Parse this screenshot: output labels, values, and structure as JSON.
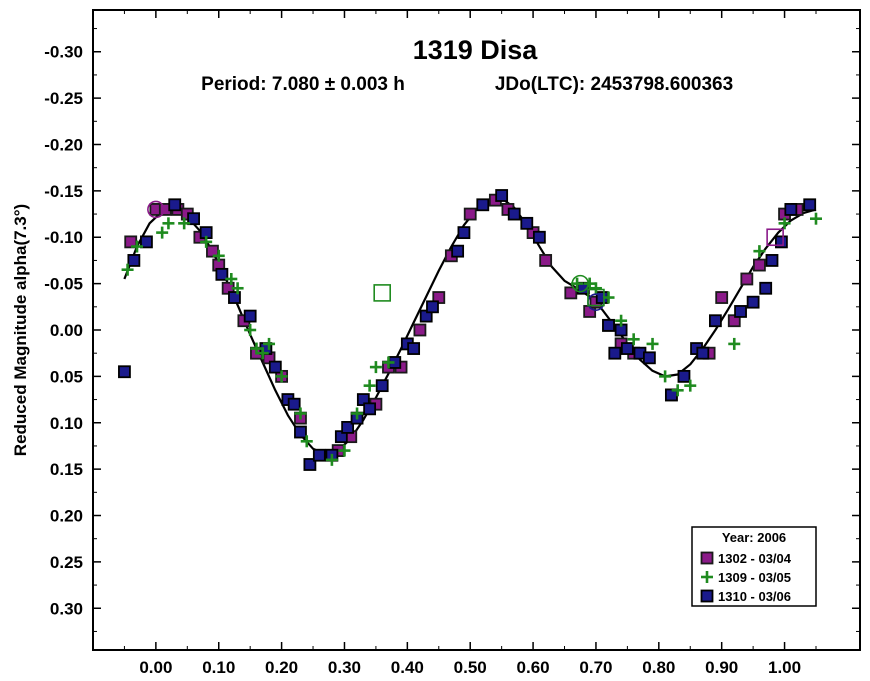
{
  "chart_data": {
    "type": "scatter",
    "title": "1319 Disa",
    "subtitle_period": "Period: 7.080 ± 0.003 h",
    "subtitle_epoch": "JDo(LTC): 2453798.600363",
    "ylabel": "Reduced Magnitude alpha(7.3°)",
    "xlim": [
      -0.1,
      1.12
    ],
    "ylim": [
      -0.345,
      0.345
    ],
    "y_inverted": true,
    "x_ticks": [
      0.0,
      0.1,
      0.2,
      0.3,
      0.4,
      0.5,
      0.6,
      0.7,
      0.8,
      0.9,
      1.0
    ],
    "x_tick_labels": [
      "0.00",
      "0.10",
      "0.20",
      "0.30",
      "0.40",
      "0.50",
      "0.60",
      "0.70",
      "0.80",
      "0.90",
      "1.00"
    ],
    "y_ticks": [
      -0.3,
      -0.25,
      -0.2,
      -0.15,
      -0.1,
      -0.05,
      0.0,
      0.05,
      0.1,
      0.15,
      0.2,
      0.25,
      0.3
    ],
    "y_tick_labels": [
      "-0.30",
      "-0.25",
      "-0.20",
      "-0.15",
      "-0.10",
      "-0.05",
      "0.00",
      "0.05",
      "0.10",
      "0.15",
      "0.20",
      "0.25",
      "0.30"
    ],
    "legend": {
      "title": "Year: 2006",
      "placement": "bottom-right"
    },
    "series": [
      {
        "name": "1302 - 03/04",
        "marker": "square-outlined",
        "color": "#8B1A89",
        "edge": "#1a1a1a",
        "points": [
          [
            -0.04,
            -0.095
          ],
          [
            0.0,
            -0.13
          ],
          [
            0.015,
            -0.13
          ],
          [
            0.035,
            -0.13
          ],
          [
            0.05,
            -0.125
          ],
          [
            0.07,
            -0.1
          ],
          [
            0.09,
            -0.085
          ],
          [
            0.1,
            -0.07
          ],
          [
            0.115,
            -0.045
          ],
          [
            0.14,
            -0.01
          ],
          [
            0.16,
            0.025
          ],
          [
            0.18,
            0.03
          ],
          [
            0.2,
            0.05
          ],
          [
            0.23,
            0.095
          ],
          [
            0.29,
            0.13
          ],
          [
            0.31,
            0.115
          ],
          [
            0.35,
            0.08
          ],
          [
            0.37,
            0.04
          ],
          [
            0.39,
            0.04
          ],
          [
            0.42,
            0.0
          ],
          [
            0.45,
            -0.035
          ],
          [
            0.47,
            -0.08
          ],
          [
            0.5,
            -0.125
          ],
          [
            0.54,
            -0.14
          ],
          [
            0.56,
            -0.13
          ],
          [
            0.6,
            -0.105
          ],
          [
            0.62,
            -0.075
          ],
          [
            0.66,
            -0.04
          ],
          [
            0.69,
            -0.02
          ],
          [
            0.7,
            -0.03
          ],
          [
            0.72,
            -0.005
          ],
          [
            0.74,
            0.015
          ],
          [
            0.76,
            0.025
          ],
          [
            0.82,
            0.07
          ],
          [
            0.88,
            0.025
          ],
          [
            0.9,
            -0.035
          ],
          [
            0.92,
            -0.01
          ],
          [
            0.94,
            -0.055
          ],
          [
            0.96,
            -0.07
          ],
          [
            1.0,
            -0.125
          ],
          [
            1.02,
            -0.13
          ]
        ]
      },
      {
        "name": "1309 - 03/05",
        "marker": "plus",
        "color": "#1F8B1F",
        "points": [
          [
            -0.045,
            -0.065
          ],
          [
            -0.03,
            -0.09
          ],
          [
            0.01,
            -0.105
          ],
          [
            0.02,
            -0.115
          ],
          [
            0.045,
            -0.115
          ],
          [
            0.08,
            -0.095
          ],
          [
            0.1,
            -0.08
          ],
          [
            0.12,
            -0.055
          ],
          [
            0.13,
            -0.045
          ],
          [
            0.15,
            0.0
          ],
          [
            0.16,
            0.02
          ],
          [
            0.17,
            0.025
          ],
          [
            0.18,
            0.015
          ],
          [
            0.2,
            0.05
          ],
          [
            0.23,
            0.09
          ],
          [
            0.24,
            0.12
          ],
          [
            0.28,
            0.14
          ],
          [
            0.3,
            0.13
          ],
          [
            0.32,
            0.09
          ],
          [
            0.34,
            0.06
          ],
          [
            0.35,
            0.04
          ],
          [
            0.37,
            0.035
          ],
          [
            0.67,
            -0.05
          ],
          [
            0.69,
            -0.05
          ],
          [
            0.7,
            -0.045
          ],
          [
            0.72,
            -0.035
          ],
          [
            0.74,
            -0.01
          ],
          [
            0.76,
            0.01
          ],
          [
            0.79,
            0.015
          ],
          [
            0.81,
            0.05
          ],
          [
            0.83,
            0.065
          ],
          [
            0.85,
            0.06
          ],
          [
            0.92,
            0.015
          ],
          [
            0.96,
            -0.085
          ],
          [
            1.0,
            -0.115
          ],
          [
            1.05,
            -0.12
          ]
        ]
      },
      {
        "name": "1310 - 03/06",
        "marker": "square-outlined",
        "color": "#1A1A8C",
        "edge": "#000000",
        "points": [
          [
            -0.05,
            0.045
          ],
          [
            -0.035,
            -0.075
          ],
          [
            -0.015,
            -0.095
          ],
          [
            0.03,
            -0.135
          ],
          [
            0.06,
            -0.12
          ],
          [
            0.08,
            -0.105
          ],
          [
            0.105,
            -0.06
          ],
          [
            0.125,
            -0.035
          ],
          [
            0.15,
            -0.015
          ],
          [
            0.175,
            0.02
          ],
          [
            0.19,
            0.04
          ],
          [
            0.21,
            0.075
          ],
          [
            0.22,
            0.08
          ],
          [
            0.23,
            0.11
          ],
          [
            0.245,
            0.145
          ],
          [
            0.26,
            0.135
          ],
          [
            0.28,
            0.135
          ],
          [
            0.295,
            0.115
          ],
          [
            0.305,
            0.105
          ],
          [
            0.32,
            0.095
          ],
          [
            0.33,
            0.075
          ],
          [
            0.34,
            0.085
          ],
          [
            0.36,
            0.06
          ],
          [
            0.38,
            0.035
          ],
          [
            0.4,
            0.015
          ],
          [
            0.41,
            0.02
          ],
          [
            0.43,
            -0.015
          ],
          [
            0.44,
            -0.025
          ],
          [
            0.48,
            -0.085
          ],
          [
            0.49,
            -0.105
          ],
          [
            0.52,
            -0.135
          ],
          [
            0.55,
            -0.145
          ],
          [
            0.57,
            -0.125
          ],
          [
            0.59,
            -0.115
          ],
          [
            0.61,
            -0.1
          ],
          [
            0.68,
            -0.045
          ],
          [
            0.71,
            -0.035
          ],
          [
            0.72,
            -0.005
          ],
          [
            0.73,
            0.025
          ],
          [
            0.74,
            0.0
          ],
          [
            0.75,
            0.02
          ],
          [
            0.77,
            0.025
          ],
          [
            0.785,
            0.03
          ],
          [
            0.82,
            0.07
          ],
          [
            0.84,
            0.05
          ],
          [
            0.86,
            0.02
          ],
          [
            0.87,
            0.025
          ],
          [
            0.89,
            -0.01
          ],
          [
            0.93,
            -0.02
          ],
          [
            0.95,
            -0.03
          ],
          [
            0.97,
            -0.045
          ],
          [
            0.98,
            -0.075
          ],
          [
            0.995,
            -0.095
          ],
          [
            1.01,
            -0.13
          ],
          [
            1.04,
            -0.135
          ]
        ]
      }
    ],
    "circled_points": [
      {
        "x": 0.0,
        "y": -0.13,
        "color": "#8B1A89"
      },
      {
        "x": 0.7,
        "y": -0.03,
        "color": "#1A1A8C"
      },
      {
        "x": 0.675,
        "y": -0.05,
        "color": "#1F8B1F"
      }
    ],
    "boxed_points": [
      {
        "x": 0.36,
        "y": -0.04,
        "color": "#1F8B1F"
      },
      {
        "x": 0.7,
        "y": -0.035,
        "color": "#1F8B1F"
      },
      {
        "x": 0.985,
        "y": -0.1,
        "color": "#8B1A89"
      }
    ],
    "fit_curve": [
      [
        -0.05,
        -0.055
      ],
      [
        -0.03,
        -0.09
      ],
      [
        -0.01,
        -0.115
      ],
      [
        0.01,
        -0.128
      ],
      [
        0.03,
        -0.13
      ],
      [
        0.05,
        -0.122
      ],
      [
        0.07,
        -0.107
      ],
      [
        0.09,
        -0.085
      ],
      [
        0.11,
        -0.057
      ],
      [
        0.13,
        -0.027
      ],
      [
        0.15,
        0.005
      ],
      [
        0.17,
        0.035
      ],
      [
        0.19,
        0.065
      ],
      [
        0.21,
        0.092
      ],
      [
        0.23,
        0.113
      ],
      [
        0.25,
        0.128
      ],
      [
        0.27,
        0.134
      ],
      [
        0.29,
        0.13
      ],
      [
        0.31,
        0.117
      ],
      [
        0.33,
        0.097
      ],
      [
        0.35,
        0.073
      ],
      [
        0.37,
        0.047
      ],
      [
        0.39,
        0.02
      ],
      [
        0.41,
        -0.008
      ],
      [
        0.43,
        -0.036
      ],
      [
        0.45,
        -0.064
      ],
      [
        0.47,
        -0.09
      ],
      [
        0.49,
        -0.113
      ],
      [
        0.51,
        -0.13
      ],
      [
        0.53,
        -0.14
      ],
      [
        0.55,
        -0.142
      ],
      [
        0.57,
        -0.132
      ],
      [
        0.59,
        -0.113
      ],
      [
        0.61,
        -0.09
      ],
      [
        0.63,
        -0.068
      ],
      [
        0.65,
        -0.053
      ],
      [
        0.67,
        -0.045
      ],
      [
        0.69,
        -0.036
      ],
      [
        0.71,
        -0.022
      ],
      [
        0.73,
        -0.004
      ],
      [
        0.75,
        0.015
      ],
      [
        0.77,
        0.032
      ],
      [
        0.79,
        0.044
      ],
      [
        0.81,
        0.05
      ],
      [
        0.83,
        0.048
      ],
      [
        0.85,
        0.037
      ],
      [
        0.87,
        0.02
      ],
      [
        0.89,
        0.0
      ],
      [
        0.91,
        -0.022
      ],
      [
        0.93,
        -0.045
      ],
      [
        0.95,
        -0.068
      ],
      [
        0.97,
        -0.088
      ],
      [
        0.99,
        -0.105
      ],
      [
        1.01,
        -0.118
      ],
      [
        1.03,
        -0.126
      ],
      [
        1.05,
        -0.13
      ]
    ]
  }
}
